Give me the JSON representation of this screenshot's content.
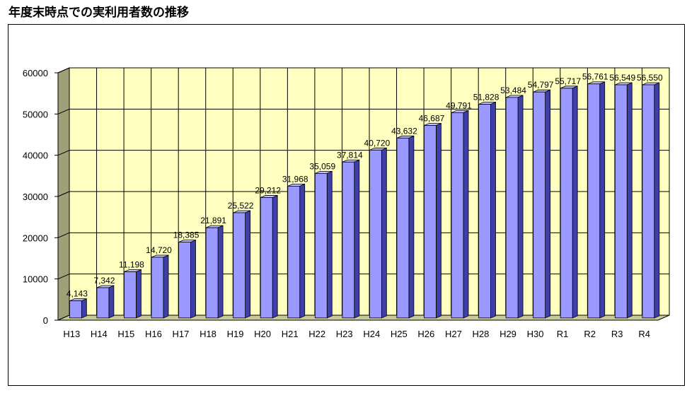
{
  "page": {
    "title": "年度末時点での実利用者数の推移"
  },
  "chart_data": {
    "type": "bar",
    "title": "",
    "xlabel": "",
    "ylabel": "",
    "ylim": [
      0,
      60000
    ],
    "yticks": [
      "0",
      "10000",
      "20000",
      "30000",
      "40000",
      "50000",
      "60000"
    ],
    "grid": true,
    "legend": "none",
    "categories": [
      "H13",
      "H14",
      "H15",
      "H16",
      "H17",
      "H18",
      "H19",
      "H20",
      "H21",
      "H22",
      "H23",
      "H24",
      "H25",
      "H26",
      "H27",
      "H28",
      "H29",
      "H30",
      "R1",
      "R2",
      "R3",
      "R4"
    ],
    "values": [
      4143,
      7342,
      11198,
      14720,
      18385,
      21891,
      25522,
      29212,
      31968,
      35059,
      37814,
      40720,
      43632,
      46687,
      49791,
      51828,
      53484,
      54797,
      55717,
      56761,
      56549,
      56550
    ],
    "labels": [
      "4,143",
      "7,342",
      "11,198",
      "14,720",
      "18,385",
      "21,891",
      "25,522",
      "29,212",
      "31,968",
      "35,059",
      "37,814",
      "40,720",
      "43,632",
      "46,687",
      "49,791",
      "51,828",
      "53,484",
      "54,797",
      "55,717",
      "56,761",
      "56,549",
      "56,550"
    ],
    "colors": {
      "bar_front": "#9999ff",
      "bar_side": "#3f3fa8",
      "bar_top": "#c0c0ff",
      "plot_back": "#ffffc0",
      "plot_wall": "#a0a078",
      "plot_floor": "#c8c89a",
      "grid": "#000000"
    }
  }
}
